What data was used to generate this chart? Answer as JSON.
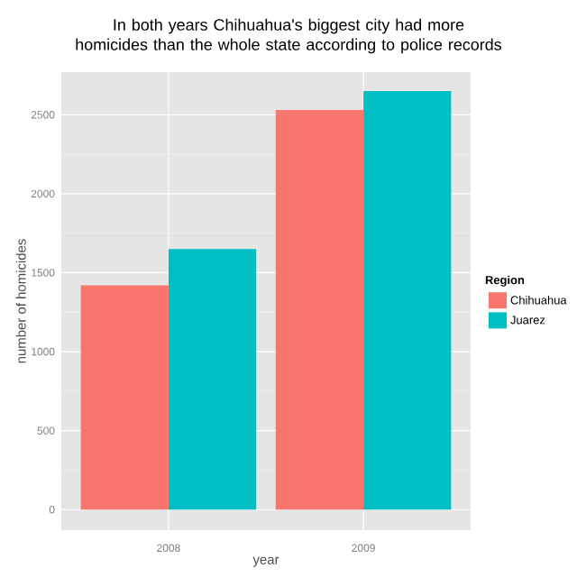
{
  "chart_data": {
    "type": "bar",
    "title": "In both years Chihuahua's biggest city had more homicides than the whole state according to police records",
    "xlabel": "year",
    "ylabel": "number of homicides",
    "legend_title": "Region",
    "categories": [
      "2008",
      "2009"
    ],
    "series": [
      {
        "name": "Chihuahua",
        "color": "#f8766d",
        "values": [
          1420,
          2530
        ]
      },
      {
        "name": "Juarez",
        "color": "#00bfc4",
        "values": [
          1650,
          2650
        ]
      }
    ],
    "ylim": [
      -130,
      2770
    ],
    "yticks": [
      0,
      500,
      1000,
      1500,
      2000,
      2500
    ],
    "grid": true,
    "legend": "right"
  }
}
